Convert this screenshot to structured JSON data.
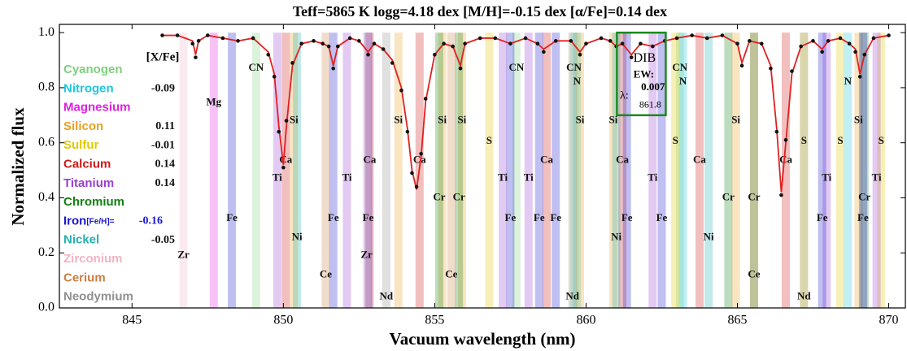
{
  "chart_data": {
    "type": "spectrum",
    "title": "Teff=5865 K logg=4.18 dex [M/H]=-0.15 dex [α/Fe]=0.14 dex",
    "x_label": "Vacuum wavelength (nm)",
    "y_label": "Normalized flux",
    "xlim": [
      842.6,
      870.55
    ],
    "ylim": [
      0,
      1.03
    ],
    "xticks": [
      845,
      850,
      855,
      860,
      865,
      870
    ],
    "yticks": [
      {
        "value": 0,
        "label": "0.0"
      },
      0.2,
      0.4,
      0.6,
      0.8,
      {
        "value": 1,
        "label": "1.0"
      }
    ],
    "x": [
      846.0,
      846.5,
      847.0,
      847.1,
      847.2,
      847.5,
      848.0,
      848.5,
      849.0,
      849.5,
      849.7,
      849.85,
      850.0,
      850.1,
      850.3,
      850.6,
      851.0,
      851.3,
      851.5,
      851.65,
      851.8,
      852.2,
      852.5,
      852.8,
      853.0,
      853.3,
      853.6,
      853.9,
      854.1,
      854.25,
      854.4,
      854.55,
      854.7,
      855.0,
      855.3,
      855.6,
      855.85,
      856.0,
      856.5,
      857.0,
      857.5,
      858.0,
      858.4,
      858.6,
      859.0,
      859.5,
      859.8,
      860.0,
      860.5,
      860.8,
      861.0,
      861.2,
      861.5,
      861.8,
      862.2,
      862.6,
      863.0,
      863.5,
      864.0,
      864.5,
      865.0,
      865.15,
      865.4,
      865.8,
      866.1,
      866.3,
      866.45,
      866.6,
      866.8,
      867.1,
      867.5,
      867.8,
      868.0,
      868.4,
      868.7,
      868.9,
      869.05,
      869.2,
      869.5,
      870.0
    ],
    "series": [
      {
        "color": "#e02020",
        "values": [
          0.99,
          0.99,
          0.97,
          0.92,
          0.97,
          0.99,
          0.98,
          0.97,
          0.98,
          0.93,
          0.85,
          0.66,
          0.52,
          0.66,
          0.88,
          0.96,
          0.97,
          0.96,
          0.95,
          0.88,
          0.95,
          0.98,
          0.97,
          0.93,
          0.96,
          0.94,
          0.9,
          0.8,
          0.65,
          0.5,
          0.43,
          0.55,
          0.75,
          0.92,
          0.96,
          0.95,
          0.88,
          0.96,
          0.98,
          0.98,
          0.96,
          0.98,
          0.96,
          0.94,
          0.97,
          0.97,
          0.93,
          0.96,
          0.98,
          0.97,
          0.95,
          0.96,
          0.92,
          0.96,
          0.95,
          0.97,
          0.98,
          0.99,
          0.98,
          0.99,
          0.96,
          0.89,
          0.97,
          0.96,
          0.88,
          0.65,
          0.42,
          0.6,
          0.85,
          0.95,
          0.97,
          0.94,
          0.97,
          0.98,
          0.96,
          0.94,
          0.85,
          0.92,
          0.98,
          0.99
        ]
      },
      {
        "color": "#111111",
        "values": [
          0.99,
          0.99,
          0.96,
          0.91,
          0.97,
          0.99,
          0.98,
          0.97,
          0.98,
          0.92,
          0.84,
          0.64,
          0.51,
          0.68,
          0.89,
          0.96,
          0.97,
          0.96,
          0.95,
          0.87,
          0.95,
          0.98,
          0.97,
          0.92,
          0.96,
          0.94,
          0.89,
          0.79,
          0.64,
          0.49,
          0.44,
          0.56,
          0.76,
          0.92,
          0.96,
          0.95,
          0.87,
          0.96,
          0.98,
          0.98,
          0.96,
          0.98,
          0.96,
          0.93,
          0.97,
          0.97,
          0.92,
          0.96,
          0.98,
          0.97,
          0.95,
          0.96,
          0.91,
          0.96,
          0.95,
          0.97,
          0.98,
          0.99,
          0.98,
          0.99,
          0.96,
          0.88,
          0.97,
          0.96,
          0.87,
          0.64,
          0.41,
          0.61,
          0.86,
          0.95,
          0.97,
          0.93,
          0.97,
          0.98,
          0.96,
          0.93,
          0.84,
          0.92,
          0.98,
          0.99
        ]
      }
    ],
    "abundance_header": "[X/Fe]",
    "elements": [
      {
        "name": "Cyanogen",
        "symbol": "CN",
        "color": "#7fcf7f",
        "lines": [
          849.1,
          857.7,
          859.6,
          863.1
        ]
      },
      {
        "name": "Nitrogen",
        "symbol": "N",
        "color": "#1ec8e0",
        "abundance": -0.09,
        "lines": [
          859.7,
          863.2,
          868.65
        ]
      },
      {
        "name": "Magnesium",
        "symbol": "Mg",
        "color": "#e020e0",
        "lines": [
          847.7
        ]
      },
      {
        "name": "Silicon",
        "symbol": "Si",
        "color": "#e8a020",
        "abundance": 0.11,
        "lines": [
          850.35,
          853.8,
          855.25,
          855.9,
          859.8,
          860.9,
          864.95,
          869.0
        ]
      },
      {
        "name": "Sulfur",
        "symbol": "S",
        "color": "#e0c800",
        "abundance": -0.01,
        "lines": [
          856.8,
          862.95,
          867.2,
          868.4,
          869.75
        ]
      },
      {
        "name": "Calcium",
        "symbol": "Ca",
        "color": "#d01818",
        "abundance": 0.14,
        "lines": [
          850.08,
          852.85,
          854.5,
          858.7,
          861.2,
          863.75,
          866.6
        ]
      },
      {
        "name": "Titanium",
        "symbol": "Ti",
        "color": "#9a40d0",
        "abundance": 0.14,
        "lines": [
          849.8,
          852.1,
          857.25,
          858.1,
          862.2,
          867.95,
          869.6
        ]
      },
      {
        "name": "Chromium",
        "symbol": "Cr",
        "color": "#128012",
        "lines": [
          855.15,
          855.8,
          864.7,
          865.55,
          869.2
        ]
      },
      {
        "name": "Iron",
        "abundance_label": "[Fe/H]=",
        "symbol": "Fe",
        "color": "#1818d0",
        "abundance": -0.16,
        "lines": [
          848.3,
          851.65,
          852.8,
          857.5,
          858.45,
          859.0,
          861.35,
          862.5,
          867.8,
          869.15
        ]
      },
      {
        "name": "Nickel",
        "symbol": "Ni",
        "color": "#22b0b0",
        "abundance": -0.05,
        "lines": [
          850.45,
          861.0,
          864.05
        ]
      },
      {
        "name": "Zirconium",
        "symbol": "Zr",
        "color": "#f0b4c4",
        "lines": [
          846.7,
          852.75
        ]
      },
      {
        "name": "Cerium",
        "symbol": "Ce",
        "color": "#c88040",
        "lines": [
          851.4,
          855.55,
          865.55
        ]
      },
      {
        "name": "Neodymium",
        "symbol": "Nd",
        "color": "#909090",
        "lines": [
          853.4,
          859.55,
          867.2
        ]
      }
    ],
    "dib": {
      "label": "DIB",
      "ew_label": "EW:",
      "ew": 0.007,
      "lambda_label": "λ:",
      "lambda": 861.8
    }
  }
}
